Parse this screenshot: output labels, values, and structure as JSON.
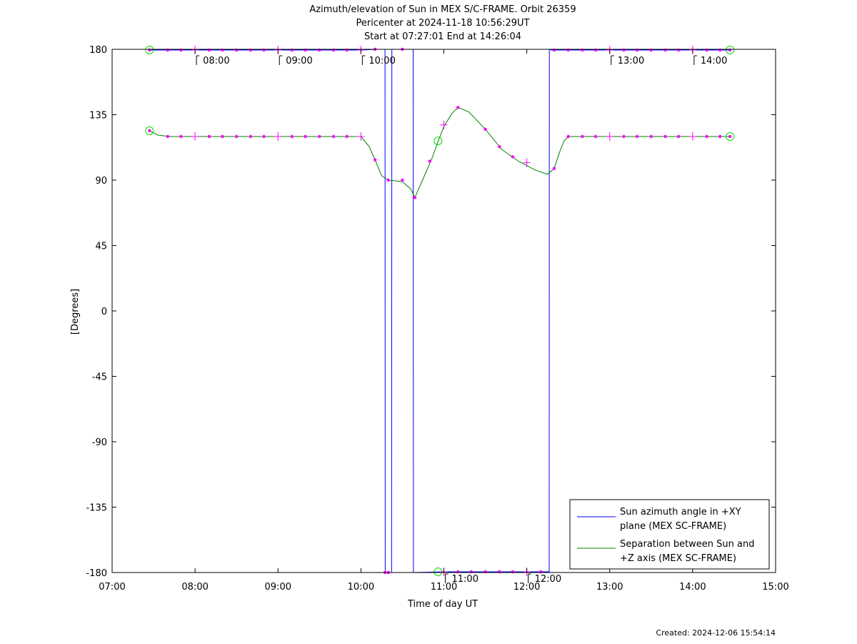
{
  "chart_data": {
    "type": "line",
    "title_lines": [
      "Azimuth/elevation of Sun in MEX S/C-FRAME.  Orbit 26359",
      "Pericenter at 2024-11-18 10:56:29UT",
      "Start at 07:27:01 End at 14:26:04"
    ],
    "xlabel": "Time of day UT",
    "ylabel": "[Degrees]",
    "xlim": [
      7.0,
      15.0
    ],
    "ylim": [
      -180,
      180
    ],
    "x_ticks": [
      {
        "v": 7,
        "label": "07:00"
      },
      {
        "v": 8,
        "label": "08:00"
      },
      {
        "v": 9,
        "label": "09:00"
      },
      {
        "v": 10,
        "label": "10:00"
      },
      {
        "v": 11,
        "label": "11:00"
      },
      {
        "v": 12,
        "label": "12:00"
      },
      {
        "v": 13,
        "label": "13:00"
      },
      {
        "v": 14,
        "label": "14:00"
      },
      {
        "v": 15,
        "label": "15:00"
      }
    ],
    "y_ticks": [
      {
        "v": 180,
        "label": "180"
      },
      {
        "v": 135,
        "label": "135"
      },
      {
        "v": 90,
        "label": "90"
      },
      {
        "v": 45,
        "label": "45"
      },
      {
        "v": 0,
        "label": "0"
      },
      {
        "v": -45,
        "label": "-45"
      },
      {
        "v": -90,
        "label": "-90"
      },
      {
        "v": -135,
        "label": "-135"
      },
      {
        "v": -180,
        "label": "-180"
      }
    ],
    "grid": false,
    "legend_position": "bottom-right",
    "series": [
      {
        "name": "Sun azimuth angle in +XY plane (MEX SC-FRAME)",
        "legend_lines": [
          "Sun azimuth angle in +XY",
          "plane (MEX SC-FRAME)"
        ],
        "color": "#0000ff",
        "x": [
          7.45,
          8.0,
          9.0,
          10.0,
          10.2,
          10.29,
          10.293,
          10.33,
          10.37,
          10.373,
          10.5,
          10.62,
          10.63,
          10.633,
          11.0,
          11.5,
          12.0,
          12.2,
          12.27,
          12.272,
          12.3,
          12.5,
          13.0,
          14.0,
          14.45
        ],
        "y": [
          179.5,
          179.5,
          179.5,
          179.5,
          180,
          180,
          -180,
          -180,
          -180,
          180,
          180,
          180,
          180,
          -180,
          -179.5,
          -179.5,
          -179.5,
          -179.5,
          -179.5,
          180,
          179.5,
          179.5,
          179.5,
          179.5,
          179.5
        ]
      },
      {
        "name": "Separation between Sun and +Z axis (MEX SC-FRAME)",
        "legend_lines": [
          "Separation between Sun and",
          "+Z axis (MEX SC-FRAME)"
        ],
        "color": "#008000",
        "x": [
          7.45,
          7.55,
          7.7,
          8.0,
          9.0,
          10.0,
          10.1,
          10.17,
          10.25,
          10.33,
          10.5,
          10.6,
          10.65,
          10.75,
          10.85,
          10.92,
          11.0,
          11.1,
          11.17,
          11.3,
          11.5,
          11.7,
          11.9,
          12.1,
          12.25,
          12.33,
          12.4,
          12.45,
          12.5,
          13.0,
          14.0,
          14.45
        ],
        "y": [
          124,
          121,
          120,
          120,
          120,
          120,
          113,
          104,
          93,
          90,
          89,
          84,
          78,
          91,
          104,
          115,
          127,
          136,
          140,
          137,
          125,
          111,
          103,
          97,
          94,
          98,
          110,
          117,
          120,
          120,
          120,
          120
        ]
      }
    ],
    "markers": {
      "color": "#ff00ff",
      "dots": [
        [
          7.45,
          179.5
        ],
        [
          7.67,
          179.5
        ],
        [
          7.83,
          179.5
        ],
        [
          8.17,
          179.5
        ],
        [
          8.33,
          179.5
        ],
        [
          8.5,
          179.5
        ],
        [
          8.67,
          179.5
        ],
        [
          8.83,
          179.5
        ],
        [
          9.17,
          179.5
        ],
        [
          9.33,
          179.5
        ],
        [
          9.5,
          179.5
        ],
        [
          9.67,
          179.5
        ],
        [
          9.83,
          179.5
        ],
        [
          10.17,
          180
        ],
        [
          10.5,
          180
        ],
        [
          12.33,
          179.5
        ],
        [
          12.5,
          179.5
        ],
        [
          12.67,
          179.5
        ],
        [
          12.83,
          179.5
        ],
        [
          13.17,
          179.5
        ],
        [
          13.33,
          179.5
        ],
        [
          13.5,
          179.5
        ],
        [
          13.67,
          179.5
        ],
        [
          13.83,
          179.5
        ],
        [
          14.17,
          179.5
        ],
        [
          14.33,
          179.5
        ],
        [
          14.45,
          179.5
        ],
        [
          10.29,
          -180
        ],
        [
          10.33,
          -180
        ],
        [
          11.17,
          -179.5
        ],
        [
          11.33,
          -179.5
        ],
        [
          11.5,
          -179.5
        ],
        [
          11.67,
          -179.5
        ],
        [
          11.83,
          -179.5
        ],
        [
          12.17,
          -179.5
        ],
        [
          7.45,
          124
        ],
        [
          7.67,
          120
        ],
        [
          7.83,
          120
        ],
        [
          8.17,
          120
        ],
        [
          8.33,
          120
        ],
        [
          8.5,
          120
        ],
        [
          8.67,
          120
        ],
        [
          8.83,
          120
        ],
        [
          9.17,
          120
        ],
        [
          9.33,
          120
        ],
        [
          9.5,
          120
        ],
        [
          9.67,
          120
        ],
        [
          9.83,
          120
        ],
        [
          10.17,
          104
        ],
        [
          10.33,
          90
        ],
        [
          10.5,
          90
        ],
        [
          10.65,
          78
        ],
        [
          10.83,
          103
        ],
        [
          11.17,
          140
        ],
        [
          11.5,
          125
        ],
        [
          11.67,
          113
        ],
        [
          11.83,
          106
        ],
        [
          12.33,
          98
        ],
        [
          12.5,
          120
        ],
        [
          12.67,
          120
        ],
        [
          12.83,
          120
        ],
        [
          13.17,
          120
        ],
        [
          13.33,
          120
        ],
        [
          13.5,
          120
        ],
        [
          13.67,
          120
        ],
        [
          13.83,
          120
        ],
        [
          14.17,
          120
        ],
        [
          14.33,
          120
        ],
        [
          14.45,
          120
        ]
      ],
      "crosses": [
        [
          8.0,
          179.5
        ],
        [
          9.0,
          179.5
        ],
        [
          10.0,
          179.5
        ],
        [
          13.0,
          179.5
        ],
        [
          14.0,
          179.5
        ],
        [
          8.0,
          120
        ],
        [
          9.0,
          120
        ],
        [
          10.0,
          120
        ],
        [
          13.0,
          120
        ],
        [
          14.0,
          120
        ],
        [
          11.0,
          128
        ],
        [
          12.0,
          102
        ],
        [
          11.0,
          -179.5
        ],
        [
          12.0,
          -179.5
        ]
      ],
      "circles": [
        {
          "x": 7.45,
          "y": 179.5,
          "color": "#00dd00"
        },
        {
          "x": 14.45,
          "y": 179.5,
          "color": "#00dd00"
        },
        {
          "x": 7.45,
          "y": 124,
          "color": "#00dd00"
        },
        {
          "x": 14.45,
          "y": 120,
          "color": "#00dd00"
        },
        {
          "x": 10.93,
          "y": 117,
          "color": "#00dd00"
        },
        {
          "x": 10.93,
          "y": -179.5,
          "color": "#00dd00"
        }
      ]
    },
    "time_annotations": [
      {
        "x": 8.0,
        "label": "08:00",
        "row": "top"
      },
      {
        "x": 9.0,
        "label": "09:00",
        "row": "top"
      },
      {
        "x": 10.0,
        "label": "10:00",
        "row": "top"
      },
      {
        "x": 13.0,
        "label": "13:00",
        "row": "top"
      },
      {
        "x": 14.0,
        "label": "14:00",
        "row": "top"
      },
      {
        "x": 11.0,
        "label": "11:00",
        "row": "bottom"
      },
      {
        "x": 12.0,
        "label": "12:00",
        "row": "bottom"
      }
    ]
  },
  "footer": "Created: 2024-12-06 15:54:14"
}
